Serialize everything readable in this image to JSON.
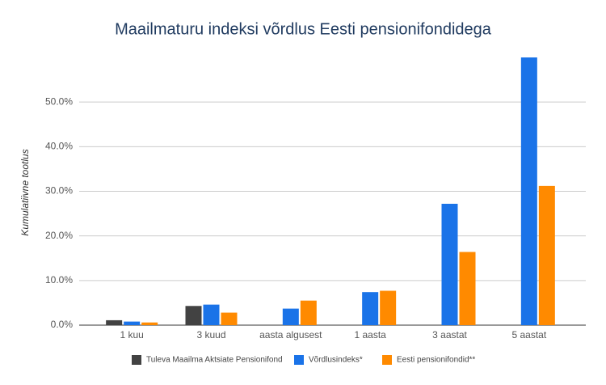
{
  "chart_data": {
    "type": "bar",
    "title": "Maailmaturu indeksi võrdlus Eesti pensionifondidega",
    "y_label": "Kumulatiivne tootlus",
    "categories": [
      "1 kuu",
      "3 kuud",
      "aasta algusest",
      "1 aasta",
      "3 aastat",
      "5 aastat"
    ],
    "series": [
      {
        "name": "Tuleva Maailma Aktsiate Pensionifond",
        "color": "#424242",
        "values": [
          1.1,
          4.3,
          null,
          null,
          null,
          null
        ]
      },
      {
        "name": "Võrdlusindeks*",
        "color": "#1a73e8",
        "values": [
          0.8,
          4.6,
          3.7,
          7.4,
          27.2,
          60
        ]
      },
      {
        "name": "Eesti pensionifondid**",
        "color": "#ff8a00",
        "values": [
          0.6,
          2.8,
          5.5,
          7.7,
          16.4,
          31.2
        ]
      }
    ],
    "ylim": [
      0,
      60
    ],
    "yticks": [
      {
        "value": 0,
        "label": "0.0%"
      },
      {
        "value": 10,
        "label": "10.0%"
      },
      {
        "value": 20,
        "label": "20.0%"
      },
      {
        "value": 30,
        "label": "30.0%"
      },
      {
        "value": 40,
        "label": "40.0%"
      },
      {
        "value": 50,
        "label": "50.0%"
      }
    ],
    "grid": true,
    "legend": "bottom"
  }
}
